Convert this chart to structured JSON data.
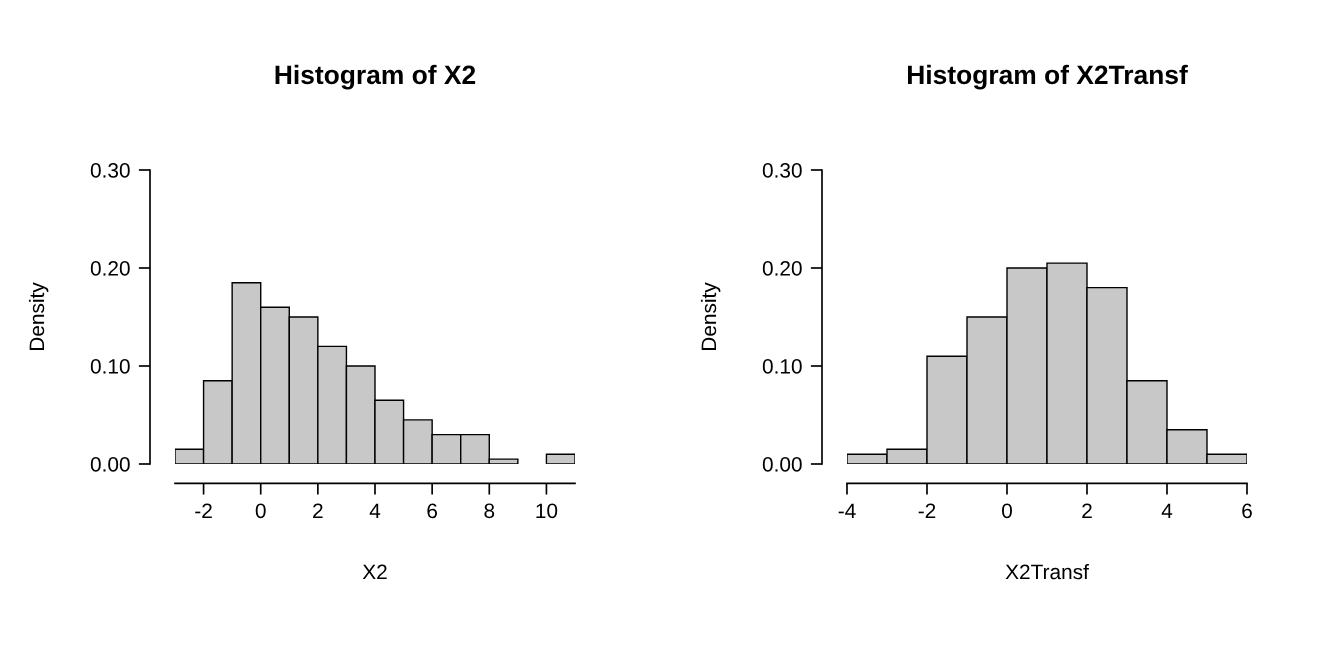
{
  "chart_data": [
    {
      "type": "histogram",
      "title": "Histogram of X2",
      "xlabel": "X2",
      "ylabel": "Density",
      "color": "#c8c8c8",
      "bins": [
        -3,
        -2,
        -1,
        0,
        1,
        2,
        3,
        4,
        5,
        6,
        7,
        8,
        9,
        10,
        11
      ],
      "values": [
        0.015,
        0.085,
        0.185,
        0.16,
        0.15,
        0.12,
        0.1,
        0.065,
        0.045,
        0.03,
        0.03,
        0.005,
        0,
        0.01
      ],
      "xlim": [
        -3,
        11
      ],
      "ylim": [
        0,
        0.3
      ],
      "xticks": [
        -2,
        0,
        2,
        4,
        6,
        8,
        10
      ],
      "yticks": [
        {
          "value": 0,
          "label": "0.00"
        },
        {
          "value": 0.1,
          "label": "0.10"
        },
        {
          "value": 0.2,
          "label": "0.20"
        },
        {
          "value": 0.3,
          "label": "0.30"
        }
      ],
      "grid": false
    },
    {
      "type": "histogram",
      "title": "Histogram of X2Transf",
      "xlabel": "X2Transf",
      "ylabel": "Density",
      "color": "#c8c8c8",
      "bins": [
        -4,
        -3,
        -2,
        -1,
        0,
        1,
        2,
        3,
        4,
        5,
        6
      ],
      "values": [
        0.01,
        0.015,
        0.11,
        0.15,
        0.2,
        0.205,
        0.18,
        0.085,
        0.035,
        0.01
      ],
      "xlim": [
        -4,
        6
      ],
      "ylim": [
        0,
        0.3
      ],
      "xticks": [
        -4,
        -2,
        0,
        2,
        4,
        6
      ],
      "yticks": [
        {
          "value": 0,
          "label": "0.00"
        },
        {
          "value": 0.1,
          "label": "0.10"
        },
        {
          "value": 0.2,
          "label": "0.20"
        },
        {
          "value": 0.3,
          "label": "0.30"
        }
      ],
      "grid": false
    }
  ]
}
